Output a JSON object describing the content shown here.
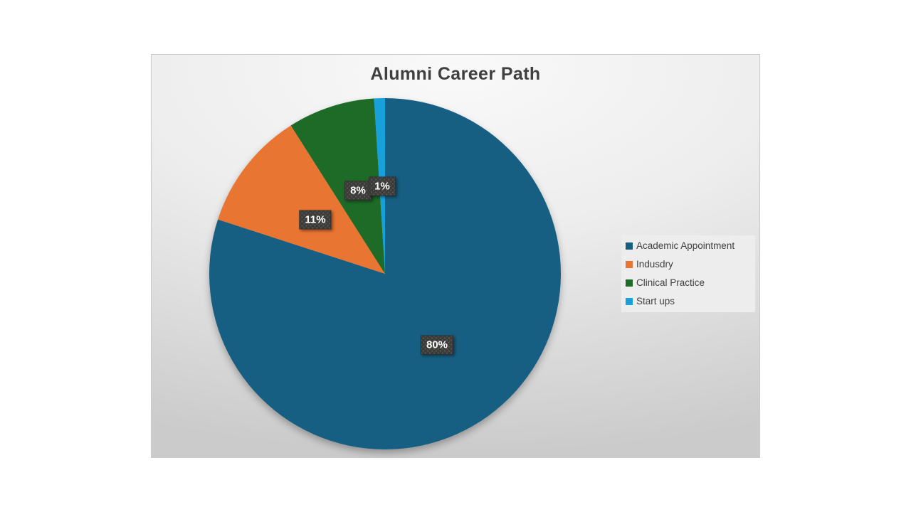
{
  "chart_data": {
    "type": "pie",
    "title": "Alumni Career Path",
    "categories": [
      "Academic Appointment",
      "Indusdry",
      "Clinical Practice",
      "Start ups"
    ],
    "values": [
      80,
      11,
      8,
      1
    ],
    "data_labels": [
      "80%",
      "11%",
      "8%",
      "1%"
    ],
    "colors": [
      "#175F82",
      "#E97532",
      "#1D6B27",
      "#18A0DB"
    ],
    "start_angle_deg": 0,
    "direction": "clockwise",
    "legend_position": "right",
    "legend_entries": [
      "Academic Appointment",
      "Indusdry",
      "Clinical Practice",
      "Start ups"
    ]
  },
  "styles": {
    "title_color": "#3F3F3F",
    "legend_text_color": "#404040",
    "legend_background": "#EDEDED",
    "data_label_background": "#3B3B3B",
    "data_label_text_color": "#FFFFFF"
  }
}
